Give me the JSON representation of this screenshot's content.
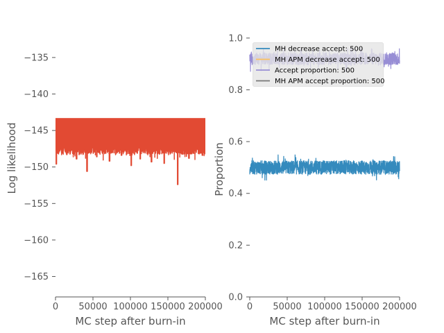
{
  "chart_data": [
    {
      "type": "line",
      "xlabel": "MC step after burn-in",
      "ylabel": "Log likelihood",
      "xlim": [
        0,
        200000
      ],
      "ylim": [
        -167.8,
        -129.5
      ],
      "xticks": [
        "0",
        "50000",
        "100000",
        "150000",
        "200000"
      ],
      "yticks": [
        "−135",
        "−140",
        "−145",
        "−150",
        "−155",
        "−160",
        "−165"
      ],
      "grid": false,
      "series": [
        {
          "color": "#E24A33",
          "band": {
            "top": -143.3,
            "typical_bottom": -147.5
          },
          "dips": [
            {
              "x": 1000,
              "y": -149.6
            },
            {
              "x": 15000,
              "y": -148.3
            },
            {
              "x": 28000,
              "y": -148.9
            },
            {
              "x": 42000,
              "y": -150.6
            },
            {
              "x": 55000,
              "y": -148.6
            },
            {
              "x": 72000,
              "y": -149.2
            },
            {
              "x": 88000,
              "y": -148.4
            },
            {
              "x": 101000,
              "y": -149.8
            },
            {
              "x": 113000,
              "y": -148.9
            },
            {
              "x": 128000,
              "y": -149.3
            },
            {
              "x": 145000,
              "y": -149.5
            },
            {
              "x": 163000,
              "y": -152.4
            },
            {
              "x": 178000,
              "y": -148.8
            },
            {
              "x": 196000,
              "y": -148.4
            }
          ]
        }
      ]
    },
    {
      "type": "line",
      "xlabel": "MC step after burn-in",
      "ylabel": "Proportion",
      "xlim": [
        0,
        200000
      ],
      "ylim": [
        0.0,
        1.08
      ],
      "xticks": [
        "0",
        "50000",
        "100000",
        "150000",
        "200000"
      ],
      "yticks": [
        "0.0",
        "0.2",
        "0.4",
        "0.6",
        "0.8",
        "1.0"
      ],
      "grid": false,
      "legend": {
        "placement": "upper-left"
      },
      "series": [
        {
          "name": "MH decrease accept: 500",
          "color": "#348ABD",
          "mean": 0.5,
          "range": [
            0.45,
            0.55
          ]
        },
        {
          "name": "MH APM decrease accept: 500",
          "color": "#FBC15E"
        },
        {
          "name": "Accept proportion: 500",
          "color": "#988ED5",
          "mean": 0.92,
          "range": [
            0.87,
            0.96
          ]
        },
        {
          "name": "MH APM accept proportion: 500",
          "color": "#777777"
        }
      ]
    }
  ]
}
